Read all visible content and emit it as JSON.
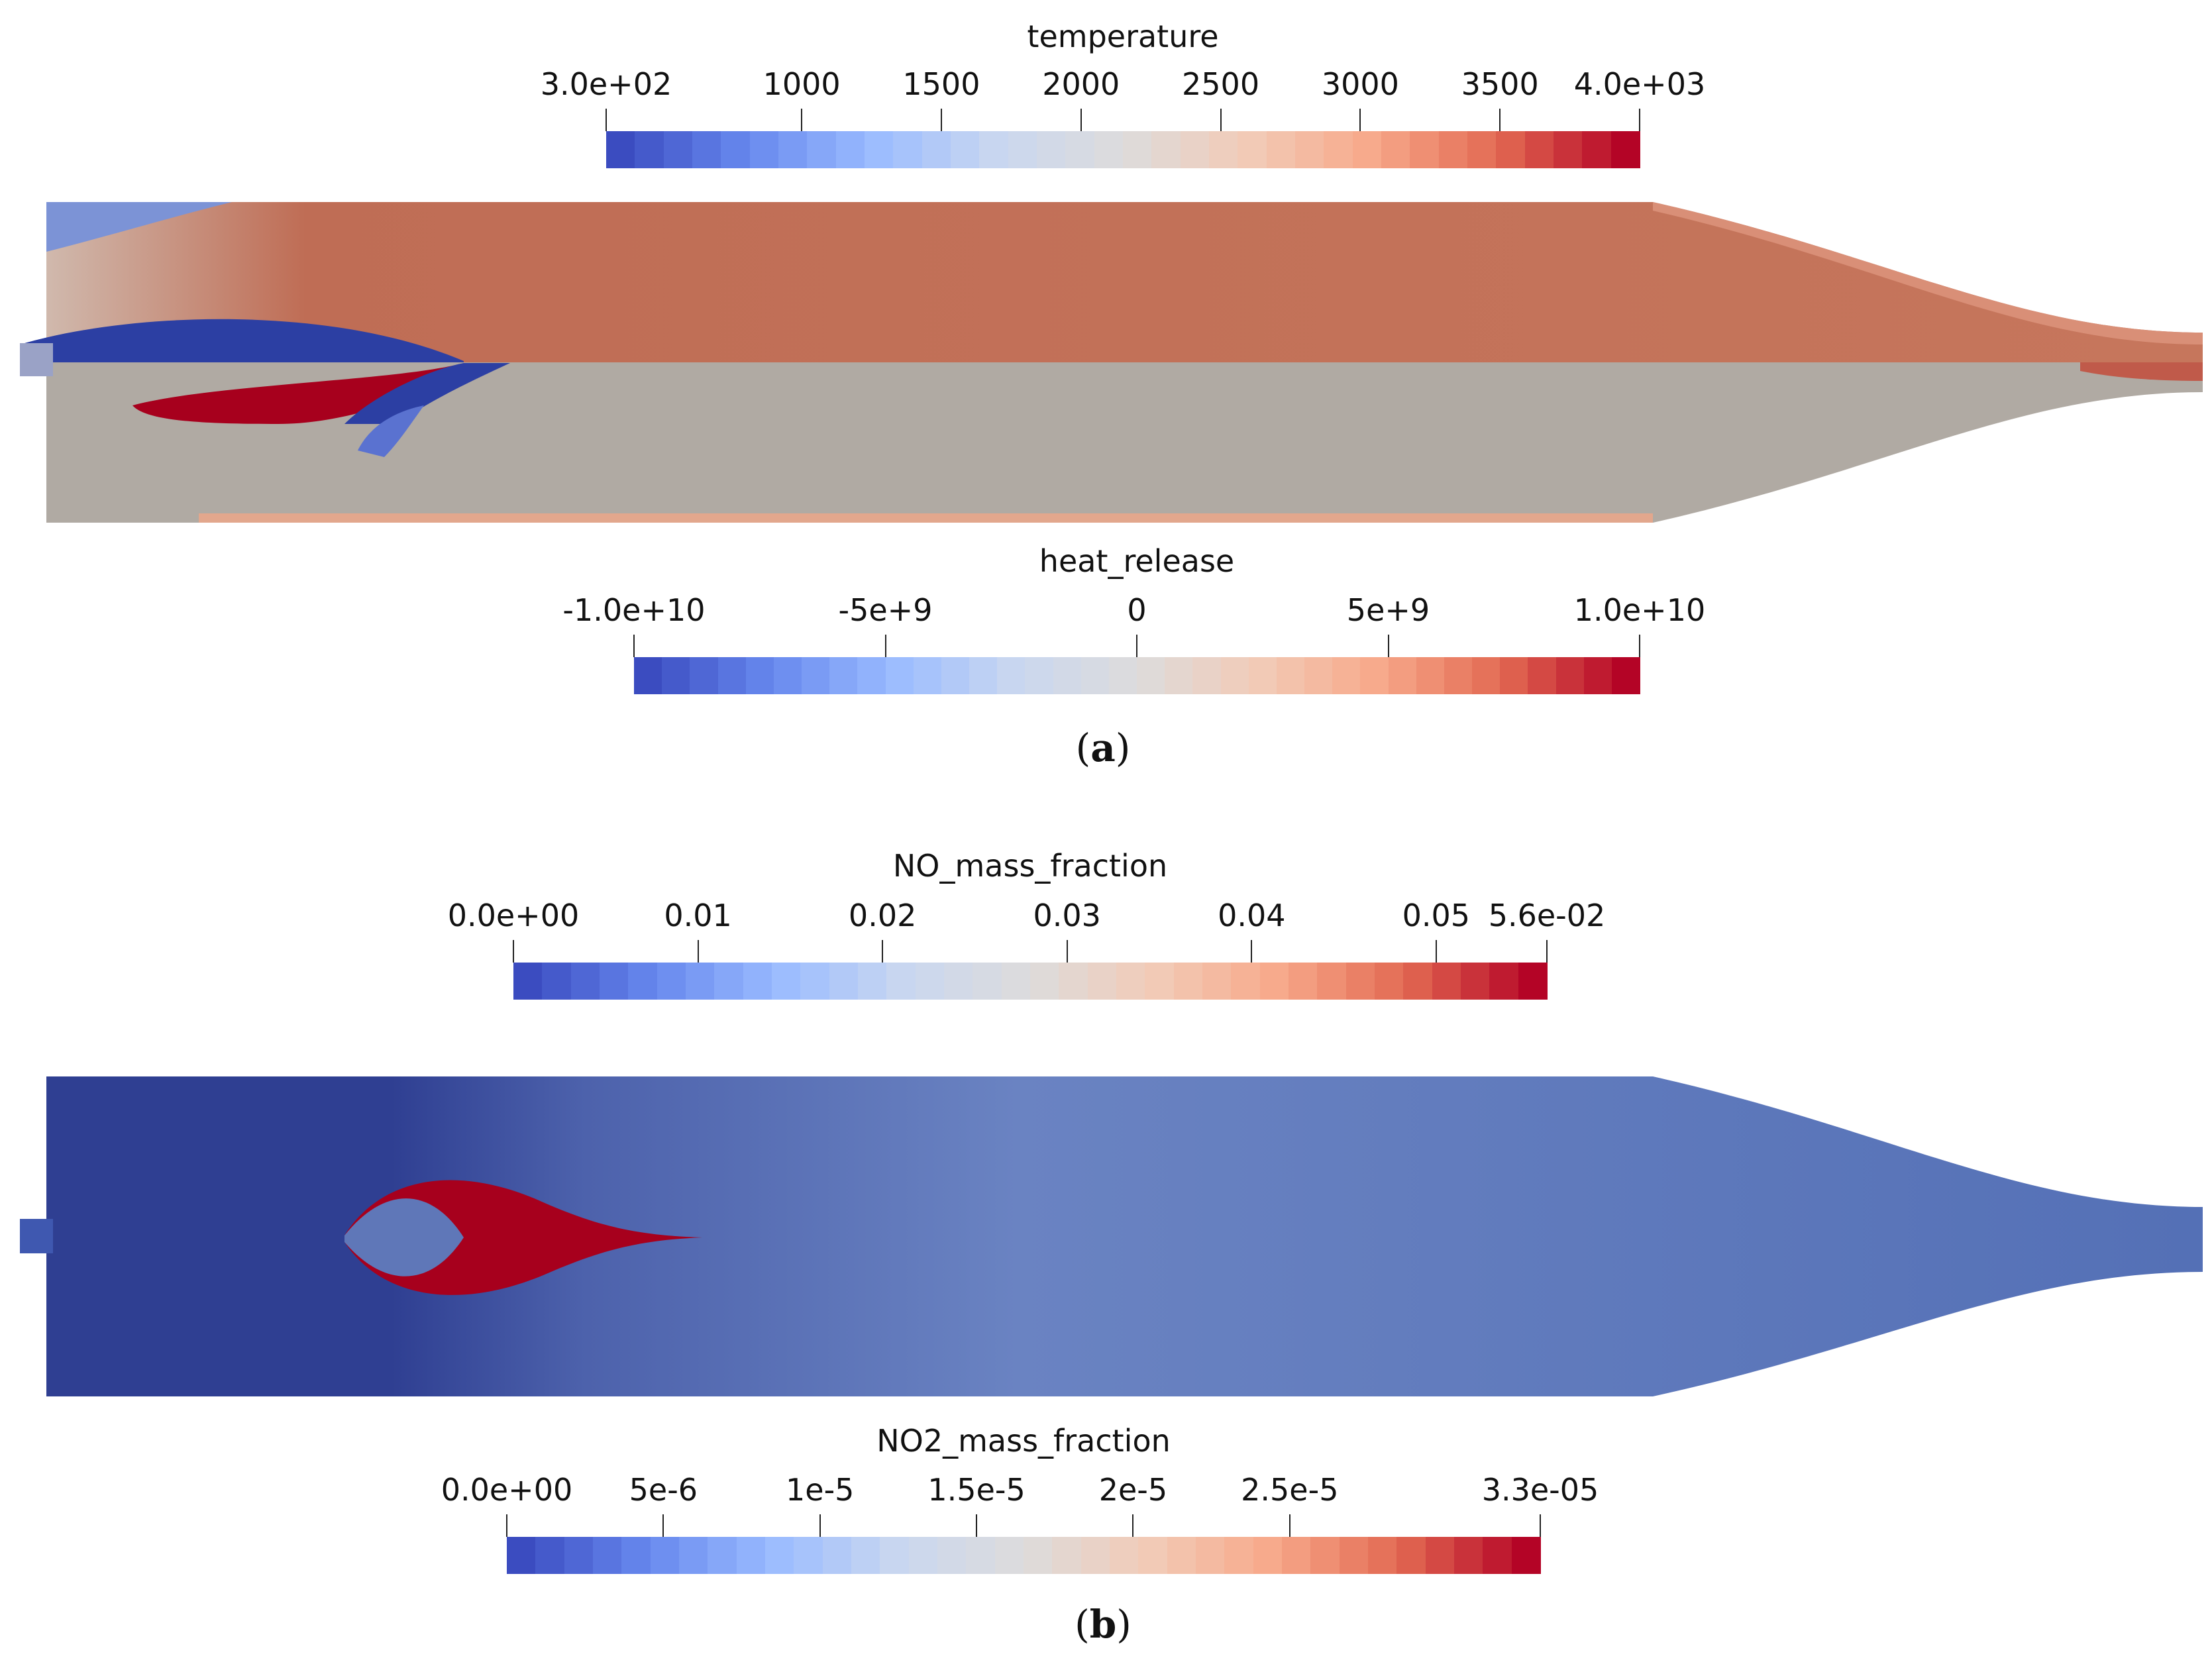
{
  "panel_a": {
    "label_text": "a",
    "colorbar_top": {
      "title": "temperature",
      "ticks": [
        {
          "label": "3.0e+02",
          "value": 300
        },
        {
          "label": "1000",
          "value": 1000
        },
        {
          "label": "1500",
          "value": 1500
        },
        {
          "label": "2000",
          "value": 2000
        },
        {
          "label": "2500",
          "value": 2500
        },
        {
          "label": "3000",
          "value": 3000
        },
        {
          "label": "3500",
          "value": 3500
        },
        {
          "label": "4.0e+03",
          "value": 4000
        }
      ],
      "range": [
        300,
        4000
      ]
    },
    "colorbar_bottom": {
      "title": "heat_release",
      "ticks": [
        {
          "label": "-1.0e+10",
          "value": -10000000000
        },
        {
          "label": "-5e+9",
          "value": -5000000000
        },
        {
          "label": "0",
          "value": 0
        },
        {
          "label": "5e+9",
          "value": 5000000000
        },
        {
          "label": "1.0e+10",
          "value": 10000000000
        }
      ],
      "range": [
        -10000000000,
        10000000000
      ]
    }
  },
  "panel_b": {
    "label_text": "b",
    "colorbar_top": {
      "title": "NO_mass_fraction",
      "ticks": [
        {
          "label": "0.0e+00",
          "value": 0
        },
        {
          "label": "0.01",
          "value": 0.01
        },
        {
          "label": "0.02",
          "value": 0.02
        },
        {
          "label": "0.03",
          "value": 0.03
        },
        {
          "label": "0.04",
          "value": 0.04
        },
        {
          "label": "0.05",
          "value": 0.05
        },
        {
          "label": "5.6e-02",
          "value": 0.056
        }
      ],
      "range": [
        0,
        0.056
      ]
    },
    "colorbar_bottom": {
      "title": "NO2_mass_fraction",
      "ticks": [
        {
          "label": "0.0e+00",
          "value": 0
        },
        {
          "label": "5e-6",
          "value": 5e-06
        },
        {
          "label": "1e-5",
          "value": 1e-05
        },
        {
          "label": "1.5e-5",
          "value": 1.5e-05
        },
        {
          "label": "2e-5",
          "value": 2e-05
        },
        {
          "label": "2.5e-5",
          "value": 2.5e-05
        },
        {
          "label": "3.3e-05",
          "value": 3.3e-05
        }
      ],
      "range": [
        0,
        3.3e-05
      ]
    }
  },
  "colors": {
    "cmap": [
      "#3b4cc0",
      "#6788ee",
      "#9abbff",
      "#c9d7f0",
      "#dddcdc",
      "#f2cbb7",
      "#f7a889",
      "#e26952",
      "#b40426"
    ],
    "temp_field": "#bf6d55",
    "heat_field": "#b0aaa3",
    "no_field": "#5f77b8",
    "no_low": "#2f3f92",
    "hot": "#a7001d",
    "cold": "#2c3fa3"
  }
}
